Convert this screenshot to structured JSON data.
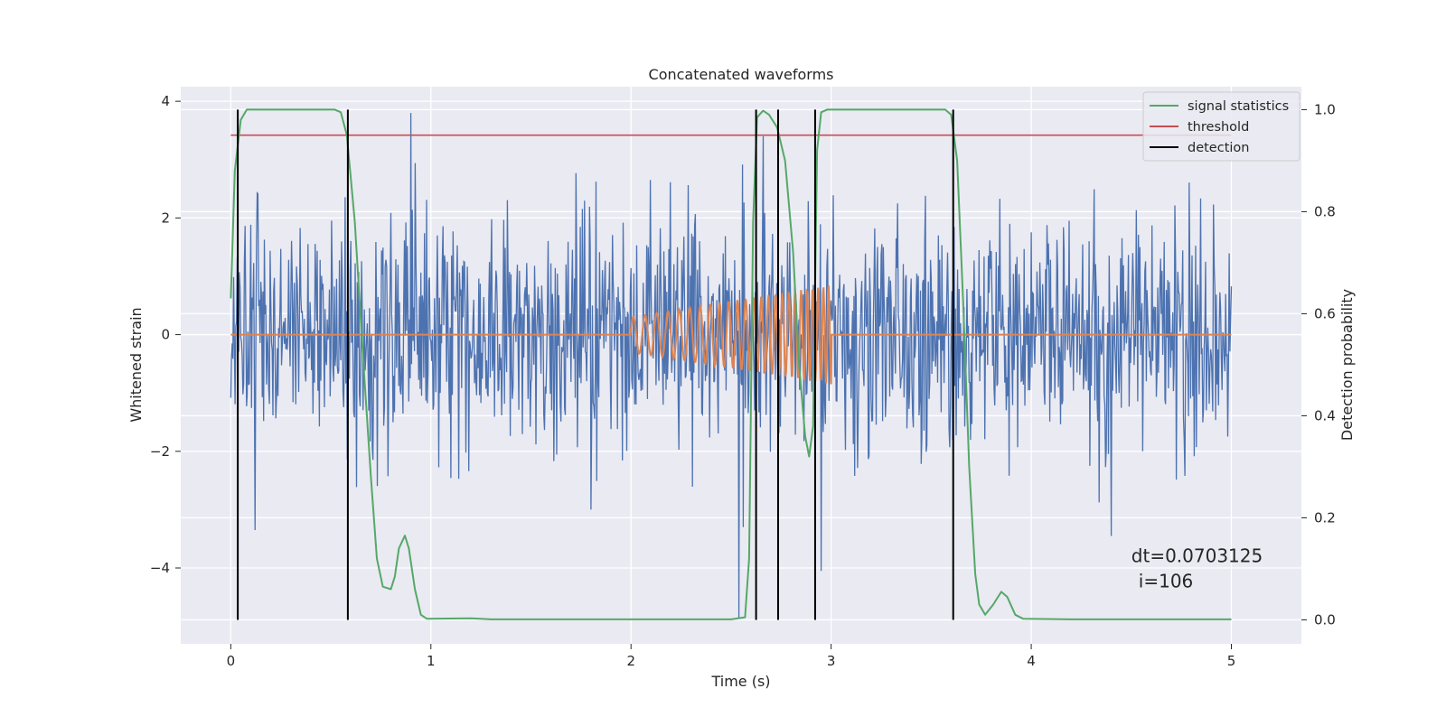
{
  "chart_data": {
    "type": "line",
    "title": "Concatenated waveforms",
    "xlabel": "Time (s)",
    "ylabel": "Whitened strain",
    "y2label": "Detection probability",
    "xlim": [
      -0.25,
      5.35
    ],
    "ylim": [
      -5.3,
      4.25
    ],
    "y2lim": [
      -0.047,
      1.045
    ],
    "xticks": [
      0,
      1,
      2,
      3,
      4,
      5
    ],
    "xtick_labels": [
      "0",
      "1",
      "2",
      "3",
      "4",
      "5"
    ],
    "yticks": [
      4,
      2,
      0,
      -2,
      -4
    ],
    "ytick_labels": [
      "4",
      "2",
      "0",
      "−2",
      "−4"
    ],
    "y2ticks": [
      1.0,
      0.8,
      0.6,
      0.4,
      0.2,
      0.0
    ],
    "y2tick_labels": [
      "1.0",
      "0.8",
      "0.6",
      "0.4",
      "0.2",
      "0.0"
    ],
    "grid": true,
    "legend_position": "top-right",
    "legend": [
      {
        "label": "signal statistics",
        "color": "#55a868"
      },
      {
        "label": "threshold",
        "color": "#c44e52"
      },
      {
        "label": "detection",
        "color": "#000000"
      }
    ],
    "series": [
      {
        "name": "whitened strain noise",
        "color": "#4c72b0",
        "axis": "left",
        "x_range": [
          0,
          5
        ],
        "amplitude_envelope": [
          -3.0,
          3.0
        ],
        "outliers": [
          {
            "x": 0.12,
            "y": -3.35
          },
          {
            "x": 0.9,
            "y": 3.8
          },
          {
            "x": 1.8,
            "y": -3.0
          },
          {
            "x": 2.54,
            "y": -4.85
          },
          {
            "x": 2.56,
            "y": -3.3
          },
          {
            "x": 2.66,
            "y": 3.4
          },
          {
            "x": 2.95,
            "y": -4.05
          },
          {
            "x": 4.4,
            "y": -3.45
          }
        ]
      },
      {
        "name": "injected chirp",
        "color": "#dd8452",
        "axis": "left",
        "start": 2.0,
        "end": 3.0,
        "start_amplitude": 0.3,
        "end_amplitude": 0.85,
        "start_frequency_hz": 17,
        "end_frequency_hz": 40
      },
      {
        "name": "signal statistics",
        "color": "#55a868",
        "axis": "right",
        "points": [
          [
            0.0,
            0.63
          ],
          [
            0.02,
            0.88
          ],
          [
            0.05,
            0.98
          ],
          [
            0.08,
            1.0
          ],
          [
            0.52,
            1.0
          ],
          [
            0.55,
            0.995
          ],
          [
            0.58,
            0.95
          ],
          [
            0.62,
            0.78
          ],
          [
            0.66,
            0.52
          ],
          [
            0.7,
            0.28
          ],
          [
            0.73,
            0.12
          ],
          [
            0.76,
            0.065
          ],
          [
            0.8,
            0.06
          ],
          [
            0.82,
            0.085
          ],
          [
            0.84,
            0.14
          ],
          [
            0.87,
            0.165
          ],
          [
            0.89,
            0.14
          ],
          [
            0.92,
            0.06
          ],
          [
            0.95,
            0.01
          ],
          [
            0.98,
            0.002
          ],
          [
            1.2,
            0.003
          ],
          [
            1.3,
            0.001
          ],
          [
            2.5,
            0.001
          ],
          [
            2.57,
            0.005
          ],
          [
            2.59,
            0.12
          ],
          [
            2.61,
            0.78
          ],
          [
            2.63,
            0.985
          ],
          [
            2.66,
            0.998
          ],
          [
            2.69,
            0.99
          ],
          [
            2.73,
            0.965
          ],
          [
            2.77,
            0.9
          ],
          [
            2.81,
            0.72
          ],
          [
            2.84,
            0.5
          ],
          [
            2.87,
            0.36
          ],
          [
            2.89,
            0.32
          ],
          [
            2.91,
            0.38
          ],
          [
            2.93,
            0.92
          ],
          [
            2.95,
            0.995
          ],
          [
            2.98,
            1.0
          ],
          [
            3.57,
            1.0
          ],
          [
            3.6,
            0.99
          ],
          [
            3.63,
            0.9
          ],
          [
            3.66,
            0.62
          ],
          [
            3.69,
            0.3
          ],
          [
            3.72,
            0.09
          ],
          [
            3.74,
            0.03
          ],
          [
            3.77,
            0.01
          ],
          [
            3.81,
            0.03
          ],
          [
            3.85,
            0.055
          ],
          [
            3.88,
            0.045
          ],
          [
            3.92,
            0.01
          ],
          [
            3.96,
            0.002
          ],
          [
            4.2,
            0.001
          ],
          [
            5.0,
            0.001
          ]
        ]
      },
      {
        "name": "threshold",
        "color": "#c44e52",
        "axis": "right",
        "value": 0.95,
        "x_range": [
          0,
          5
        ]
      }
    ],
    "detections": [
      0.035,
      0.585,
      2.625,
      2.735,
      2.92,
      3.61
    ],
    "annotations": [
      "dt=0.0703125",
      "i=106"
    ]
  }
}
